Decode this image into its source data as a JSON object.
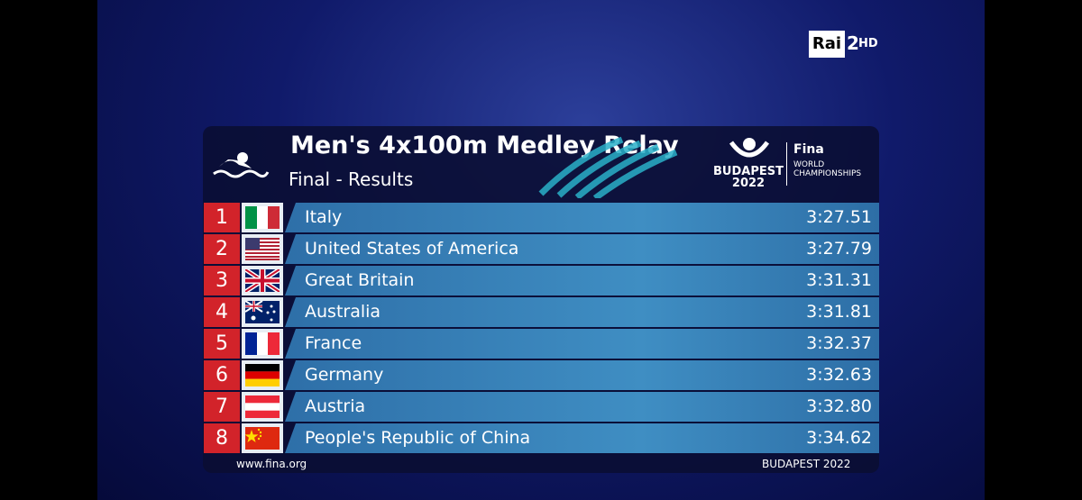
{
  "channel": {
    "name": "Rai",
    "number": "2",
    "quality": "HD"
  },
  "header": {
    "title": "Men's 4x100m Medley Relay",
    "subtitle": "Final - Results",
    "logo": {
      "brand": "Fina",
      "city": "BUDAPEST",
      "year": "2022",
      "event": "WORLD CHAMPIONSHIPS"
    }
  },
  "table": {
    "rows": [
      [
        1,
        "Italy",
        "3:27.51"
      ],
      [
        2,
        "United States of America",
        "3:27.79"
      ],
      [
        3,
        "Great Britain",
        "3:31.31"
      ],
      [
        4,
        "Australia",
        "3:31.81"
      ],
      [
        5,
        "France",
        "3:32.37"
      ],
      [
        6,
        "Germany",
        "3:32.63"
      ],
      [
        7,
        "Austria",
        "3:32.80"
      ],
      [
        8,
        "People's Republic of China",
        "3:34.62"
      ]
    ]
  },
  "footer": {
    "website": "www.fina.org",
    "event": "BUDAPEST 2022"
  }
}
